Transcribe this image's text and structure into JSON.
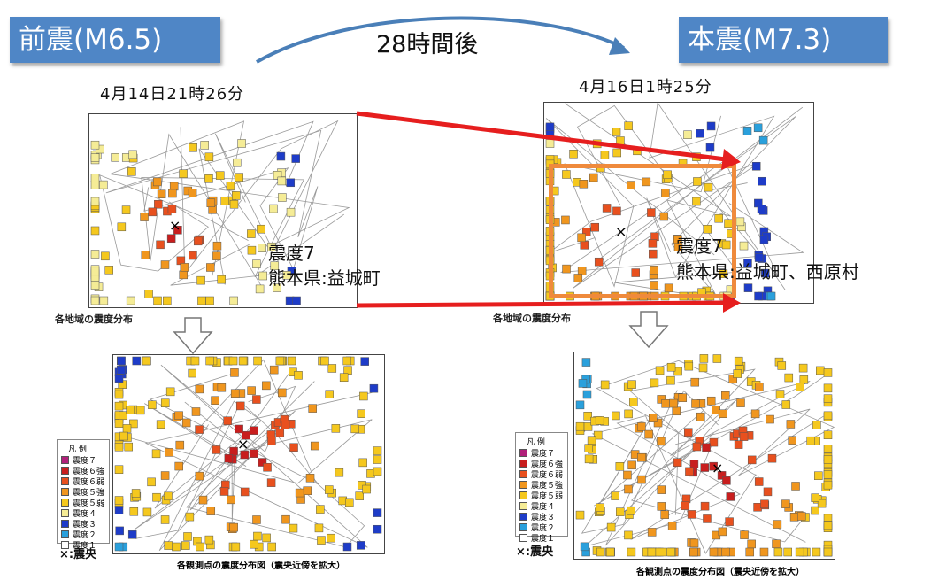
{
  "header": {
    "foreshock_badge": "前震(M6.5)",
    "mainshock_badge": "本震(M7.3)",
    "interval_label": "28時間後",
    "foreshock_date": "4月14日21時26分",
    "mainshock_date": "4月16日1時25分"
  },
  "foreshock": {
    "intensity_title": "震度7",
    "intensity_place": "熊本県:益城町",
    "regional_caption": "各地域の震度分布",
    "detail_caption": "各観測点の震度分布図（震央近傍を拡大）"
  },
  "mainshock": {
    "intensity_title": "震度7",
    "intensity_place": "熊本県:益城町、西原村",
    "regional_caption": "各地域の震度分布",
    "detail_caption": "各観測点の震度分布図（震央近傍を拡大）"
  },
  "legend": {
    "title": "凡 例",
    "items": [
      {
        "label": "震度７",
        "color": "#b0207a"
      },
      {
        "label": "震度６強",
        "color": "#c81e1e"
      },
      {
        "label": "震度６弱",
        "color": "#e8501e"
      },
      {
        "label": "震度５強",
        "color": "#f0961e"
      },
      {
        "label": "震度５弱",
        "color": "#f5c81e"
      },
      {
        "label": "震度４",
        "color": "#f5ec96"
      },
      {
        "label": "震度３",
        "color": "#1e3cc8"
      },
      {
        "label": "震度２",
        "color": "#2aa0dc"
      },
      {
        "label": "震度１",
        "color": "#ffffff"
      }
    ],
    "epicenter_label": "×:震央"
  },
  "colors": {
    "badge": "#4f86c6",
    "arrow_red": "#e61e1e",
    "highlight_orange": "#ef8a3c",
    "curve_blue": "#4a7fb8"
  }
}
